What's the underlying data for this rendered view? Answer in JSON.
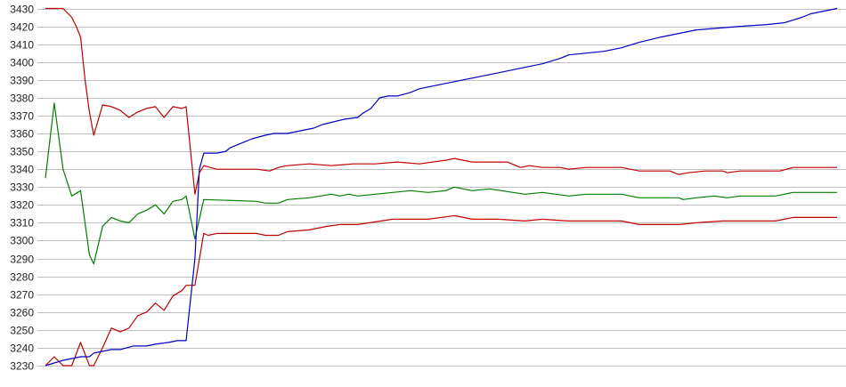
{
  "chart_data": {
    "type": "line",
    "title": "",
    "xlabel": "",
    "ylabel": "",
    "ylim": [
      3230,
      3430
    ],
    "xlim": [
      0,
      180
    ],
    "grid": true,
    "y_ticks": [
      "3230",
      "3240",
      "3250",
      "3260",
      "3270",
      "3280",
      "3290",
      "3300",
      "3310",
      "3320",
      "3330",
      "3340",
      "3350",
      "3360",
      "3370",
      "3380",
      "3390",
      "3400",
      "3410",
      "3420",
      "3430"
    ],
    "colors": {
      "grid": "#c0c0c0",
      "text": "#222222"
    },
    "series": [
      {
        "color": "#c00000",
        "points": [
          [
            0,
            3430
          ],
          [
            4,
            3430
          ],
          [
            6,
            3425
          ],
          [
            7,
            3420
          ],
          [
            8,
            3414
          ],
          [
            9,
            3390
          ],
          [
            10,
            3372
          ],
          [
            11,
            3359
          ],
          [
            13,
            3376
          ],
          [
            15,
            3375
          ],
          [
            17,
            3373
          ],
          [
            19,
            3369
          ],
          [
            21,
            3372
          ],
          [
            23,
            3374
          ],
          [
            25,
            3375
          ],
          [
            27,
            3369
          ],
          [
            29,
            3375
          ],
          [
            31,
            3374
          ],
          [
            32,
            3375
          ],
          [
            34,
            3326
          ],
          [
            35,
            3338
          ],
          [
            36,
            3342
          ],
          [
            39,
            3340
          ],
          [
            48,
            3340
          ],
          [
            51,
            3339
          ],
          [
            53,
            3341
          ],
          [
            55,
            3342
          ],
          [
            60,
            3343
          ],
          [
            65,
            3342
          ],
          [
            70,
            3343
          ],
          [
            75,
            3343
          ],
          [
            80,
            3344
          ],
          [
            85,
            3343
          ],
          [
            91,
            3345
          ],
          [
            93,
            3346
          ],
          [
            97,
            3344
          ],
          [
            101,
            3344
          ],
          [
            105,
            3344
          ],
          [
            108,
            3341
          ],
          [
            110,
            3342
          ],
          [
            113,
            3341
          ],
          [
            117,
            3341
          ],
          [
            119,
            3340
          ],
          [
            123,
            3341
          ],
          [
            131,
            3341
          ],
          [
            135,
            3339
          ],
          [
            142,
            3339
          ],
          [
            144,
            3337
          ],
          [
            146,
            3338
          ],
          [
            150,
            3339
          ],
          [
            154,
            3339
          ],
          [
            155,
            3338
          ],
          [
            158,
            3339
          ],
          [
            167,
            3339
          ],
          [
            170,
            3341
          ],
          [
            180,
            3341
          ]
        ]
      },
      {
        "color": "#008000",
        "points": [
          [
            0,
            3335
          ],
          [
            2,
            3377
          ],
          [
            4,
            3340
          ],
          [
            6,
            3325
          ],
          [
            8,
            3328
          ],
          [
            10,
            3292
          ],
          [
            11,
            3287
          ],
          [
            13,
            3308
          ],
          [
            15,
            3313
          ],
          [
            17,
            3311
          ],
          [
            19,
            3310
          ],
          [
            21,
            3315
          ],
          [
            23,
            3317
          ],
          [
            25,
            3320
          ],
          [
            27,
            3315
          ],
          [
            29,
            3322
          ],
          [
            31,
            3323
          ],
          [
            32,
            3325
          ],
          [
            34,
            3301
          ],
          [
            36,
            3323
          ],
          [
            48,
            3322
          ],
          [
            50,
            3321
          ],
          [
            53,
            3321
          ],
          [
            55,
            3323
          ],
          [
            60,
            3324
          ],
          [
            65,
            3326
          ],
          [
            67,
            3325
          ],
          [
            69,
            3326
          ],
          [
            71,
            3325
          ],
          [
            75,
            3326
          ],
          [
            79,
            3327
          ],
          [
            83,
            3328
          ],
          [
            87,
            3327
          ],
          [
            91,
            3328
          ],
          [
            93,
            3330
          ],
          [
            97,
            3328
          ],
          [
            101,
            3329
          ],
          [
            109,
            3326
          ],
          [
            113,
            3327
          ],
          [
            119,
            3325
          ],
          [
            123,
            3326
          ],
          [
            131,
            3326
          ],
          [
            135,
            3324
          ],
          [
            144,
            3324
          ],
          [
            145,
            3323
          ],
          [
            148,
            3324
          ],
          [
            152,
            3325
          ],
          [
            155,
            3324
          ],
          [
            158,
            3325
          ],
          [
            166,
            3325
          ],
          [
            170,
            3327
          ],
          [
            180,
            3327
          ]
        ]
      },
      {
        "color": "#c00000",
        "points": [
          [
            0,
            3230
          ],
          [
            2,
            3235
          ],
          [
            4,
            3230
          ],
          [
            6,
            3230
          ],
          [
            8,
            3243
          ],
          [
            10,
            3230
          ],
          [
            11,
            3230
          ],
          [
            13,
            3240
          ],
          [
            15,
            3251
          ],
          [
            17,
            3249
          ],
          [
            19,
            3251
          ],
          [
            21,
            3258
          ],
          [
            23,
            3260
          ],
          [
            25,
            3265
          ],
          [
            27,
            3261
          ],
          [
            29,
            3269
          ],
          [
            31,
            3272
          ],
          [
            32,
            3275
          ],
          [
            34,
            3275
          ],
          [
            36,
            3304
          ],
          [
            37,
            3303
          ],
          [
            39,
            3304
          ],
          [
            48,
            3304
          ],
          [
            50,
            3303
          ],
          [
            53,
            3303
          ],
          [
            55,
            3305
          ],
          [
            60,
            3306
          ],
          [
            64,
            3308
          ],
          [
            67,
            3309
          ],
          [
            71,
            3309
          ],
          [
            79,
            3312
          ],
          [
            87,
            3312
          ],
          [
            93,
            3314
          ],
          [
            97,
            3312
          ],
          [
            103,
            3312
          ],
          [
            109,
            3311
          ],
          [
            113,
            3312
          ],
          [
            119,
            3311
          ],
          [
            131,
            3311
          ],
          [
            135,
            3309
          ],
          [
            144,
            3309
          ],
          [
            148,
            3310
          ],
          [
            154,
            3311
          ],
          [
            166,
            3311
          ],
          [
            170,
            3313
          ],
          [
            180,
            3313
          ]
        ]
      },
      {
        "color": "#0000c0",
        "points": [
          [
            0,
            3230
          ],
          [
            4,
            3233
          ],
          [
            8,
            3235
          ],
          [
            10,
            3235
          ],
          [
            11,
            3237
          ],
          [
            13,
            3238
          ],
          [
            15,
            3239
          ],
          [
            17,
            3239
          ],
          [
            20,
            3241
          ],
          [
            23,
            3241
          ],
          [
            25,
            3242
          ],
          [
            28,
            3243
          ],
          [
            30,
            3244
          ],
          [
            32,
            3244
          ],
          [
            34,
            3290
          ],
          [
            35,
            3340
          ],
          [
            36,
            3349
          ],
          [
            39,
            3349
          ],
          [
            41,
            3350
          ],
          [
            42,
            3352
          ],
          [
            44,
            3354
          ],
          [
            47,
            3357
          ],
          [
            50,
            3359
          ],
          [
            52,
            3360
          ],
          [
            55,
            3360
          ],
          [
            61,
            3363
          ],
          [
            63,
            3365
          ],
          [
            68,
            3368
          ],
          [
            71,
            3369
          ],
          [
            72,
            3371
          ],
          [
            74,
            3374
          ],
          [
            76,
            3380
          ],
          [
            78,
            3381
          ],
          [
            80,
            3381
          ],
          [
            83,
            3383
          ],
          [
            85,
            3385
          ],
          [
            91,
            3388
          ],
          [
            97,
            3391
          ],
          [
            103,
            3394
          ],
          [
            109,
            3397
          ],
          [
            113,
            3399
          ],
          [
            117,
            3402
          ],
          [
            119,
            3404
          ],
          [
            123,
            3405
          ],
          [
            127,
            3406
          ],
          [
            131,
            3408
          ],
          [
            135,
            3411
          ],
          [
            140,
            3414
          ],
          [
            144,
            3416
          ],
          [
            148,
            3418
          ],
          [
            153,
            3419
          ],
          [
            158,
            3420
          ],
          [
            164,
            3421
          ],
          [
            168,
            3422
          ],
          [
            172,
            3425
          ],
          [
            174,
            3427
          ],
          [
            180,
            3430
          ]
        ]
      }
    ]
  }
}
